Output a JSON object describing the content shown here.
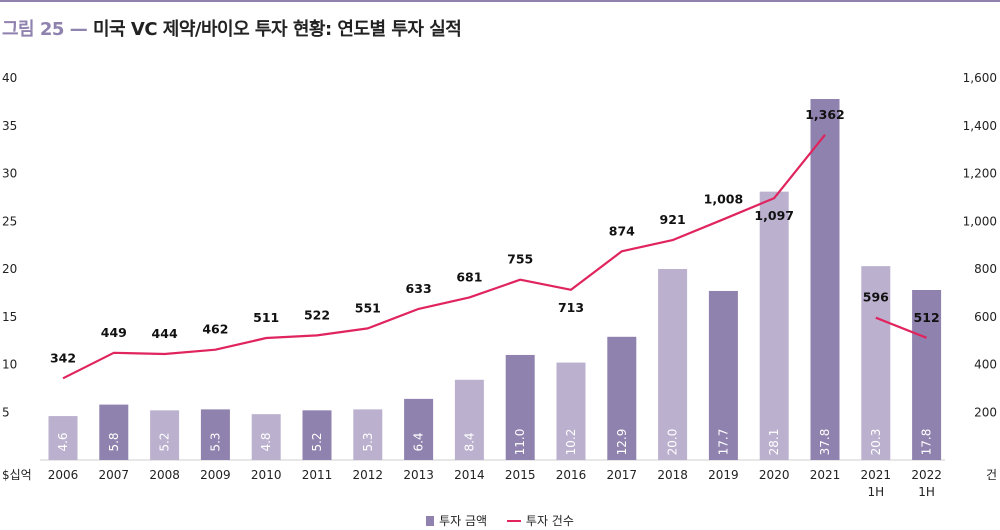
{
  "header": {
    "figure_label": "그림 25",
    "separator": "—",
    "title": "미국 VC 제약/바이오 투자 현황: 연도별 투자 실적"
  },
  "legend": {
    "bar_label": "투자 금액",
    "line_label": "투자 건수"
  },
  "colors": {
    "bar_dark": "#8f82ae",
    "bar_light": "#bbb1cf",
    "line": "#e0245e",
    "rule": "#8f82ae"
  },
  "chart_data": {
    "type": "bar",
    "categories": [
      "2006",
      "2007",
      "2008",
      "2009",
      "2010",
      "2011",
      "2012",
      "2013",
      "2014",
      "2015",
      "2016",
      "2017",
      "2018",
      "2019",
      "2020",
      "2021",
      "2021 1H",
      "2022 1H"
    ],
    "category_lines": [
      [
        "2006"
      ],
      [
        "2007"
      ],
      [
        "2008"
      ],
      [
        "2009"
      ],
      [
        "2010"
      ],
      [
        "2011"
      ],
      [
        "2012"
      ],
      [
        "2013"
      ],
      [
        "2014"
      ],
      [
        "2015"
      ],
      [
        "2016"
      ],
      [
        "2017"
      ],
      [
        "2018"
      ],
      [
        "2019"
      ],
      [
        "2020"
      ],
      [
        "2021"
      ],
      [
        "2021",
        "1H"
      ],
      [
        "2022",
        "1H"
      ]
    ],
    "series": [
      {
        "name": "투자 금액",
        "type": "bar",
        "axis": "left",
        "values": [
          4.6,
          5.8,
          5.2,
          5.3,
          4.8,
          5.2,
          5.3,
          6.4,
          8.4,
          11.0,
          10.2,
          12.9,
          20.0,
          17.7,
          28.1,
          37.8,
          20.3,
          17.8
        ],
        "labels": [
          "4.6",
          "5.8",
          "5.2",
          "5.3",
          "4.8",
          "5.2",
          "5.3",
          "6.4",
          "8.4",
          "11.0",
          "10.2",
          "12.9",
          "20.0",
          "17.7",
          "28.1",
          "37.8",
          "20.3",
          "17.8"
        ],
        "shade": [
          "light",
          "dark",
          "light",
          "dark",
          "light",
          "dark",
          "light",
          "dark",
          "light",
          "dark",
          "light",
          "dark",
          "light",
          "dark",
          "light",
          "dark",
          "light",
          "dark"
        ]
      },
      {
        "name": "투자 건수",
        "type": "line",
        "axis": "right",
        "values": [
          342,
          449,
          444,
          462,
          511,
          522,
          551,
          633,
          681,
          755,
          713,
          874,
          921,
          1008,
          1097,
          1362,
          596,
          512
        ],
        "labels": [
          "342",
          "449",
          "444",
          "462",
          "511",
          "522",
          "551",
          "633",
          "681",
          "755",
          "713",
          "874",
          "921",
          "1,008",
          "1,097",
          "1,362",
          "596",
          "512"
        ],
        "label_pos": [
          "above",
          "above",
          "above",
          "above",
          "above",
          "above",
          "above",
          "above",
          "above",
          "above",
          "below",
          "above",
          "above",
          "above",
          "below",
          "above",
          "above",
          "above"
        ],
        "segments": [
          [
            0,
            15
          ],
          [
            16,
            17
          ]
        ]
      }
    ],
    "y_left": {
      "unit_label": "$십억",
      "ylim": [
        0,
        40
      ],
      "ticks": [
        5,
        10,
        15,
        20,
        25,
        30,
        35,
        40
      ],
      "tick_labels": [
        "5",
        "10",
        "15",
        "20",
        "25",
        "30",
        "35",
        "40"
      ]
    },
    "y_right": {
      "unit_label": "건",
      "ylim": [
        0,
        1600
      ],
      "ticks": [
        200,
        400,
        600,
        800,
        1000,
        1200,
        1400,
        1600
      ],
      "tick_labels": [
        "200",
        "400",
        "600",
        "800",
        "1,000",
        "1,200",
        "1,400",
        "1,600"
      ]
    },
    "grid": false,
    "legend_position": "bottom-center"
  }
}
